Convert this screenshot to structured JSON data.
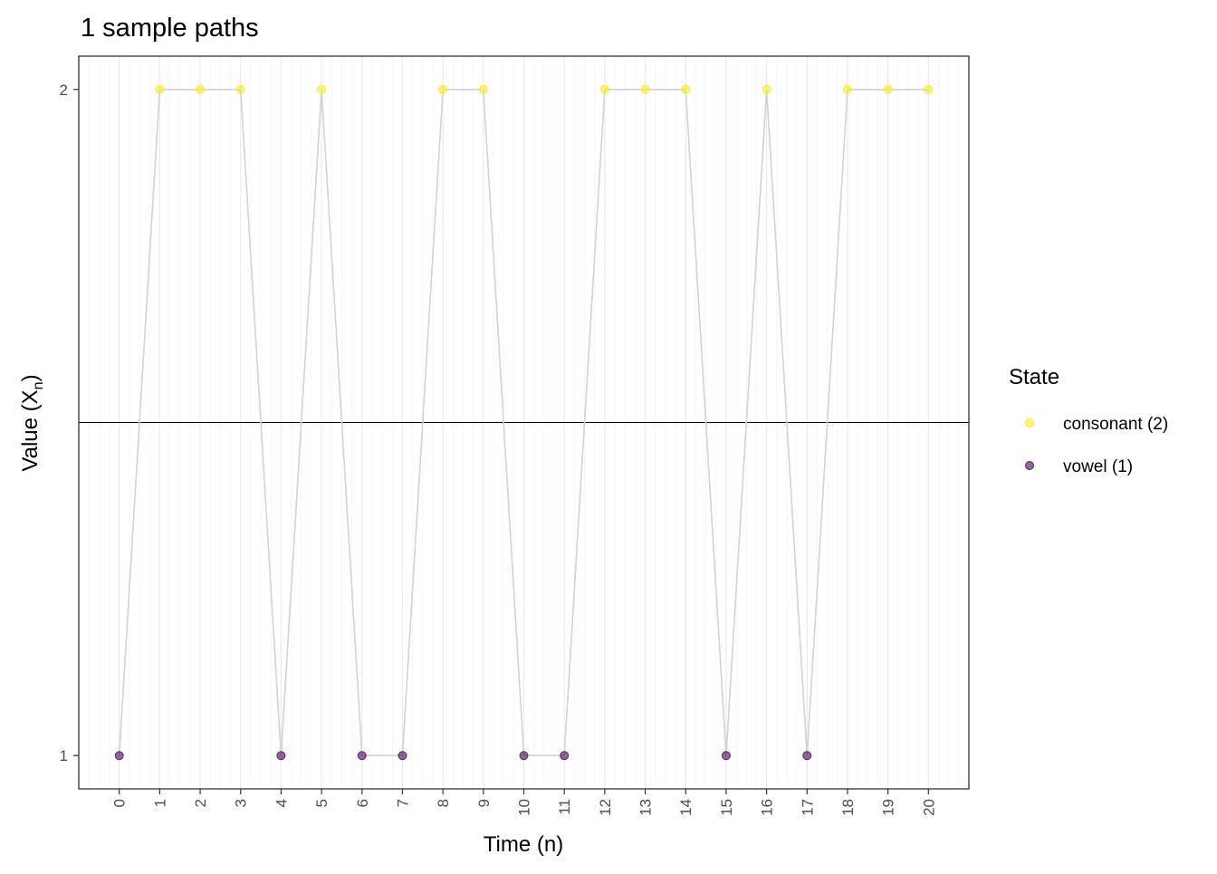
{
  "chart_data": {
    "type": "line",
    "title": "1 sample paths",
    "xlabel": "Time (n)",
    "ylabel_main": "Value (X",
    "ylabel_sub": "n",
    "ylabel_close": ")",
    "x": [
      0,
      1,
      2,
      3,
      4,
      5,
      6,
      7,
      8,
      9,
      10,
      11,
      12,
      13,
      14,
      15,
      16,
      17,
      18,
      19,
      20
    ],
    "y": [
      1,
      2,
      2,
      2,
      1,
      2,
      1,
      1,
      2,
      2,
      1,
      1,
      2,
      2,
      2,
      1,
      2,
      1,
      2,
      2,
      2
    ],
    "xlim": [
      -1,
      21
    ],
    "ylim": [
      0.95,
      2.05
    ],
    "x_ticks": [
      "0",
      "1",
      "2",
      "3",
      "4",
      "5",
      "6",
      "7",
      "8",
      "9",
      "10",
      "11",
      "12",
      "13",
      "14",
      "15",
      "16",
      "17",
      "18",
      "19",
      "20"
    ],
    "y_ticks": [
      {
        "value": 1,
        "label": "1"
      },
      {
        "value": 2,
        "label": "2"
      }
    ],
    "hline": 1.5,
    "path_color": "#d3d3d3",
    "hline_color": "#000000",
    "grid": true,
    "legend": {
      "title": "State",
      "placement": "right",
      "entries": [
        {
          "label": "consonant (2)",
          "state": 2,
          "color": "#FDE725"
        },
        {
          "label": "vowel (1)",
          "state": 1,
          "color": "#440154"
        }
      ]
    }
  }
}
